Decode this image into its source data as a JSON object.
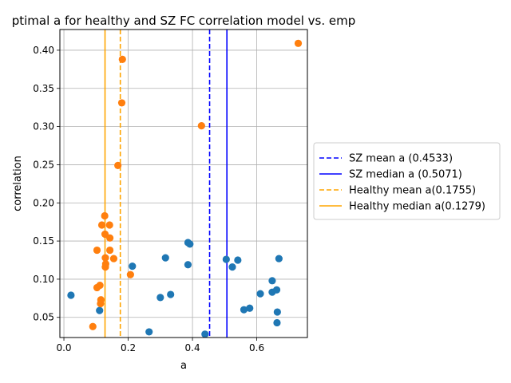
{
  "chart_data": {
    "type": "scatter",
    "title": "ptimal a for healthy and SZ FC correlation model vs. emp",
    "xlabel": "a",
    "ylabel": "correlation",
    "xlim": [
      -0.0125,
      0.7575
    ],
    "ylim": [
      0.0236,
      0.4271
    ],
    "xticks": [
      "0.0",
      "0.2",
      "0.4",
      "0.6"
    ],
    "xtick_values": [
      0.0,
      0.2,
      0.4,
      0.6
    ],
    "yticks": [
      "0.05",
      "0.10",
      "0.15",
      "0.20",
      "0.25",
      "0.30",
      "0.35",
      "0.40"
    ],
    "ytick_values": [
      0.05,
      0.1,
      0.15,
      0.2,
      0.25,
      0.3,
      0.35,
      0.4
    ],
    "grid": true,
    "legend_position": "right, outside plot area",
    "series": [
      {
        "color": "#1f77b4",
        "points": [
          [
            0.022,
            0.079
          ],
          [
            0.111,
            0.059
          ],
          [
            0.213,
            0.117
          ],
          [
            0.265,
            0.031
          ],
          [
            0.3,
            0.076
          ],
          [
            0.316,
            0.128
          ],
          [
            0.332,
            0.08
          ],
          [
            0.386,
            0.148
          ],
          [
            0.392,
            0.146
          ],
          [
            0.386,
            0.119
          ],
          [
            0.439,
            0.028
          ],
          [
            0.505,
            0.126
          ],
          [
            0.524,
            0.116
          ],
          [
            0.541,
            0.125
          ],
          [
            0.56,
            0.06
          ],
          [
            0.578,
            0.062
          ],
          [
            0.611,
            0.081
          ],
          [
            0.648,
            0.098
          ],
          [
            0.648,
            0.083
          ],
          [
            0.662,
            0.086
          ],
          [
            0.664,
            0.057
          ],
          [
            0.663,
            0.043
          ],
          [
            0.669,
            0.127
          ]
        ]
      },
      {
        "color": "#ff7f0e",
        "points": [
          [
            0.09,
            0.038
          ],
          [
            0.103,
            0.138
          ],
          [
            0.103,
            0.089
          ],
          [
            0.112,
            0.092
          ],
          [
            0.114,
            0.068
          ],
          [
            0.115,
            0.073
          ],
          [
            0.118,
            0.171
          ],
          [
            0.127,
            0.183
          ],
          [
            0.128,
            0.159
          ],
          [
            0.129,
            0.128
          ],
          [
            0.13,
            0.12
          ],
          [
            0.129,
            0.116
          ],
          [
            0.142,
            0.171
          ],
          [
            0.143,
            0.154
          ],
          [
            0.143,
            0.138
          ],
          [
            0.155,
            0.127
          ],
          [
            0.168,
            0.249
          ],
          [
            0.18,
            0.331
          ],
          [
            0.182,
            0.388
          ],
          [
            0.207,
            0.106
          ],
          [
            0.428,
            0.301
          ],
          [
            0.729,
            0.409
          ]
        ]
      }
    ],
    "vlines": [
      {
        "label": "SZ mean a (0.4533)",
        "x": 0.4533,
        "color": "#0000ff",
        "dashed": true
      },
      {
        "label": "SZ median a (0.5071)",
        "x": 0.5071,
        "color": "#0000ff",
        "dashed": false
      },
      {
        "label": "Healthy mean a(0.1755)",
        "x": 0.1755,
        "color": "#ffa500",
        "dashed": true
      },
      {
        "label": "Healthy median a(0.1279)",
        "x": 0.1279,
        "color": "#ffa500",
        "dashed": false
      }
    ]
  }
}
